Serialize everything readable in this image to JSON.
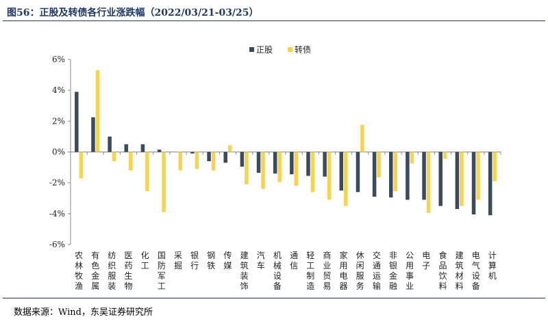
{
  "title": "图56：正股及转债各行业涨跌幅（2022/03/21-03/25）",
  "source": "数据来源：Wind，东吴证券研究所",
  "colors": {
    "stock": "#3b4a5f",
    "bond": "#f7d44f",
    "axis": "#888888",
    "text": "#222222"
  },
  "chart_data": {
    "type": "bar",
    "ylim": [
      -6,
      6
    ],
    "y_ticks": [
      "6%",
      "4%",
      "2%",
      "0%",
      "-2%",
      "-4%",
      "-6%"
    ],
    "legend_position": "top-center",
    "categories": [
      "农林牧渔",
      "有色金属",
      "纺织服装",
      "医药生物",
      "化工",
      "国防军工",
      "采掘",
      "银行",
      "钢铁",
      "传媒",
      "建筑装饰",
      "汽车",
      "机械设备",
      "通信",
      "轻工制造",
      "商业贸易",
      "家用电器",
      "休闲服务",
      "交通运输",
      "非银金融",
      "公用事业",
      "电子",
      "食品饮料",
      "建筑材料",
      "电气设备",
      "计算机"
    ],
    "series": [
      {
        "name": "正股",
        "color": "#3b4a5f",
        "values": [
          3.9,
          2.25,
          1.0,
          0.5,
          0.5,
          0.15,
          0.0,
          -0.1,
          -0.6,
          -0.7,
          -0.95,
          -1.35,
          -1.4,
          -1.45,
          -1.55,
          -1.6,
          -2.5,
          -2.6,
          -2.9,
          -2.95,
          -3.1,
          -3.1,
          -3.5,
          -3.7,
          -4.05,
          -4.1
        ]
      },
      {
        "name": "转债",
        "color": "#f7d44f",
        "values": [
          -1.7,
          5.3,
          -0.6,
          -1.2,
          -2.55,
          -3.9,
          -1.2,
          -1.1,
          -1.2,
          0.45,
          -2.1,
          -2.4,
          -1.95,
          -2.2,
          -2.6,
          -3.1,
          -3.5,
          1.75,
          -1.65,
          -2.55,
          -0.75,
          -3.95,
          -0.45,
          -3.5,
          -3.1,
          -1.9
        ]
      }
    ]
  }
}
